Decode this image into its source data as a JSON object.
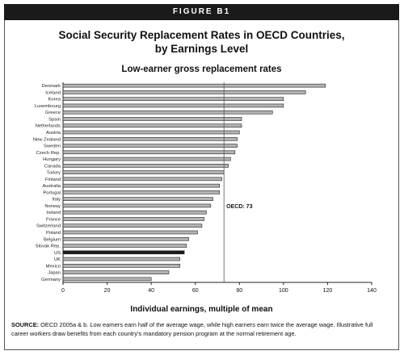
{
  "figure_label": "FIGURE B1",
  "title_line1": "Social Security Replacement Rates in OECD Countries,",
  "title_line2": "by Earnings Level",
  "subtitle": "Low-earner gross replacement rates",
  "source_label": "SOURCE:",
  "source_text": "OECD 2005a & b. Low earners earn half of the average wage, while high earners earn twice the average wage. Illustrative full career workers draw benefits from each country's mandatory pension program at the normal retirement age.",
  "chart_data": {
    "type": "bar",
    "orientation": "horizontal",
    "title": "Low-earner gross replacement rates",
    "xlabel": "Individual earnings, multiple of mean",
    "ylabel": "",
    "xlim": [
      0,
      140
    ],
    "xticks": [
      0,
      20,
      40,
      60,
      80,
      100,
      120,
      140
    ],
    "grid": false,
    "categories": [
      "Denmark",
      "Iceland",
      "Korea",
      "Luxembourg",
      "Greece",
      "Spain",
      "Netherlands",
      "Austria",
      "New Zealand",
      "Sweden",
      "Czech Rep.",
      "Hungary",
      "Canada",
      "Turkey",
      "Finland",
      "Australia",
      "Portugal",
      "Italy",
      "Norway",
      "Ireland",
      "France",
      "Switzerland",
      "Poland",
      "Belgium",
      "Slovak Rep.",
      "US",
      "UK",
      "Mexico",
      "Japan",
      "Germany"
    ],
    "values": [
      119,
      110,
      100,
      100,
      95,
      81,
      81,
      80,
      79,
      79,
      78,
      76,
      75,
      73,
      72,
      71,
      71,
      68,
      67,
      65,
      64,
      63,
      61,
      57,
      56,
      55,
      53,
      53,
      48,
      40
    ],
    "highlight": "US",
    "bar_color": "#b3b3b3",
    "highlight_color": "#1a1a1a",
    "reference_line": {
      "value": 73,
      "label": "OECD: 73"
    }
  }
}
